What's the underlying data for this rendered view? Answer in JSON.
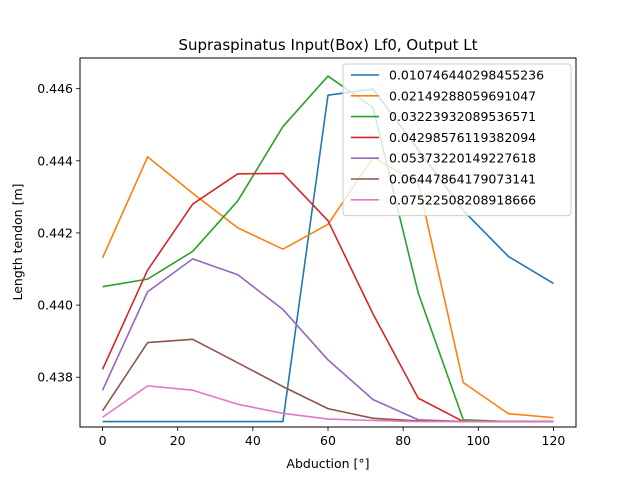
{
  "chart_data": {
    "type": "line",
    "title": "Supraspinatus Input(Box) Lf0, Output Lt",
    "xlabel": "Abduction [°]",
    "ylabel": "Length tendon [m]",
    "xlim": [
      -6,
      126
    ],
    "ylim": [
      0.43662,
      0.44685
    ],
    "xticks": [
      0,
      20,
      40,
      60,
      80,
      100,
      120
    ],
    "xtick_labels": [
      "0",
      "20",
      "40",
      "60",
      "80",
      "100",
      "120"
    ],
    "yticks": [
      0.438,
      0.44,
      0.442,
      0.444,
      0.446
    ],
    "ytick_labels": [
      "0.438",
      "0.440",
      "0.442",
      "0.444",
      "0.446"
    ],
    "grid": false,
    "legend_position": "top-right",
    "x": [
      0,
      12,
      24,
      36,
      48,
      60,
      72,
      84,
      96,
      108,
      120
    ],
    "series": [
      {
        "name": "0.010746440298455236",
        "color": "#1f77b4",
        "values": [
          0.43677,
          0.43677,
          0.43677,
          0.43677,
          0.43677,
          0.44582,
          0.44599,
          0.44431,
          0.44262,
          0.44135,
          0.4406
        ]
      },
      {
        "name": "0.02149288059691047",
        "color": "#ff7f0e",
        "values": [
          0.44131,
          0.44411,
          0.4431,
          0.44214,
          0.44155,
          0.44224,
          0.44409,
          0.4434,
          0.43785,
          0.43699,
          0.43688
        ]
      },
      {
        "name": "0.03223932089536571",
        "color": "#2ca02c",
        "values": [
          0.44051,
          0.44072,
          0.44149,
          0.44289,
          0.44495,
          0.44635,
          0.44547,
          0.44034,
          0.43682,
          0.43677,
          0.43677
        ]
      },
      {
        "name": "0.04298576119382094",
        "color": "#d62728",
        "values": [
          0.43822,
          0.44097,
          0.4428,
          0.44364,
          0.44365,
          0.44234,
          0.43975,
          0.43742,
          0.43677,
          0.43677,
          0.43677
        ]
      },
      {
        "name": "0.05373220149227618",
        "color": "#9467bd",
        "values": [
          0.43764,
          0.44037,
          0.44128,
          0.44084,
          0.43988,
          0.43848,
          0.43738,
          0.43682,
          0.43677,
          0.43677,
          0.43677
        ]
      },
      {
        "name": "0.06447864179073141",
        "color": "#8c564b",
        "values": [
          0.43707,
          0.43896,
          0.43905,
          0.4384,
          0.43774,
          0.43713,
          0.43686,
          0.43679,
          0.43677,
          0.43677,
          0.43677
        ]
      },
      {
        "name": "0.07522508208918666",
        "color": "#e377c2",
        "values": [
          0.43689,
          0.43776,
          0.43764,
          0.43725,
          0.437,
          0.43684,
          0.4368,
          0.43677,
          0.43677,
          0.43677,
          0.43677
        ]
      }
    ]
  }
}
